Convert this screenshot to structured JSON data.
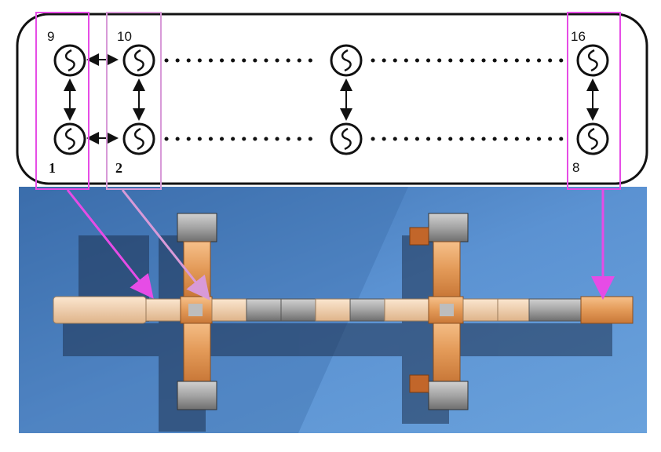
{
  "diagram": {
    "oscillator_labels": {
      "top_first": "9",
      "top_second": "10",
      "top_last": "16",
      "bottom_first": "1",
      "bottom_second": "2",
      "bottom_last": "8"
    },
    "colors": {
      "highlight_magenta": "#e64ce6",
      "highlight_pink": "#d89ad8",
      "frame": "#111111",
      "floor_blue": "#4f86c8",
      "module_orange": "#e8a060",
      "module_grey": "#8c8c8c"
    }
  }
}
